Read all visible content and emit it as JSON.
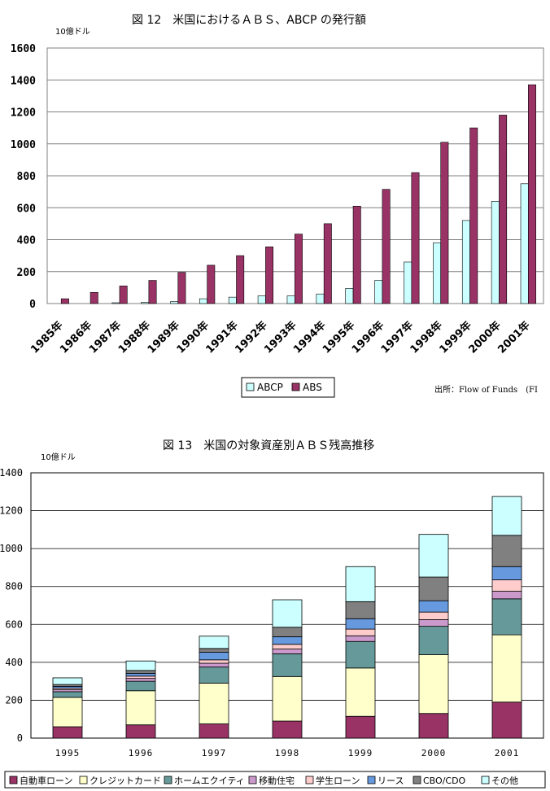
{
  "chart_data": [
    {
      "type": "bar",
      "title": "図 12　米国におけるＡＢＳ、ABCP の発行額",
      "unit": "10億ドル",
      "source": "出所：Flow of Funds　(FI",
      "categories": [
        "1985年",
        "1986年",
        "1987年",
        "1988年",
        "1989年",
        "1990年",
        "1991年",
        "1992年",
        "1993年",
        "1994年",
        "1995年",
        "1996年",
        "1997年",
        "1998年",
        "1999年",
        "2000年",
        "2001年"
      ],
      "ylim": [
        0,
        1600
      ],
      "yticks": [
        "0",
        "200",
        "400",
        "600",
        "800",
        "1000",
        "1200",
        "1400",
        "1600"
      ],
      "grid": true,
      "legend_position": "bottom",
      "series": [
        {
          "name": "ABCP",
          "color": "#ccffff",
          "values": [
            0,
            0,
            5,
            8,
            12,
            30,
            40,
            48,
            48,
            60,
            95,
            145,
            260,
            380,
            520,
            640,
            750
          ]
        },
        {
          "name": "ABS",
          "color": "#993366",
          "values": [
            30,
            70,
            110,
            145,
            195,
            240,
            300,
            355,
            435,
            500,
            610,
            715,
            820,
            1010,
            1100,
            1180,
            1370
          ]
        }
      ]
    },
    {
      "type": "bar",
      "title": "図 13　米国の対象資産別ＡＢＳ残高推移",
      "unit": "10億ドル",
      "categories": [
        "1995",
        "1996",
        "1997",
        "1998",
        "1999",
        "2000",
        "2001"
      ],
      "ylim": [
        0,
        1400
      ],
      "yticks": [
        "0",
        "200",
        "400",
        "600",
        "800",
        "1000",
        "1200",
        "1400"
      ],
      "grid": true,
      "stacked": true,
      "legend_position": "bottom",
      "series": [
        {
          "name": "自動車ローン",
          "color": "#993366",
          "values": [
            60,
            70,
            75,
            90,
            115,
            130,
            190
          ]
        },
        {
          "name": "クレジットカード",
          "color": "#ffffcc",
          "values": [
            155,
            180,
            215,
            235,
            255,
            310,
            355
          ]
        },
        {
          "name": "ホームエクイティ",
          "color": "#669999",
          "values": [
            30,
            50,
            85,
            120,
            140,
            150,
            190
          ]
        },
        {
          "name": "移動住宅",
          "color": "#cc99cc",
          "values": [
            10,
            15,
            20,
            25,
            30,
            35,
            40
          ]
        },
        {
          "name": "学生ローン",
          "color": "#ffcccc",
          "values": [
            8,
            12,
            18,
            25,
            35,
            40,
            60
          ]
        },
        {
          "name": "リース",
          "color": "#6699dd",
          "values": [
            10,
            15,
            40,
            40,
            55,
            60,
            70
          ]
        },
        {
          "name": "CBO/CDO",
          "color": "#808080",
          "values": [
            10,
            15,
            20,
            50,
            90,
            125,
            165
          ]
        },
        {
          "name": "その他",
          "color": "#ccffff",
          "values": [
            35,
            50,
            65,
            145,
            185,
            225,
            205
          ]
        }
      ]
    }
  ]
}
